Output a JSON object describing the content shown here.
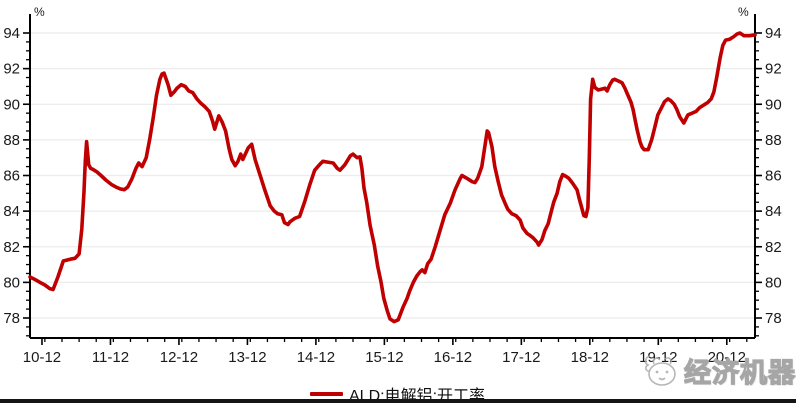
{
  "chart": {
    "unit_left": "%",
    "unit_right": "%",
    "legend": {
      "label": "ALD:电解铝:开工率",
      "color": "#c00000"
    },
    "watermark": "经济机器",
    "colors": {
      "line": "#c00000",
      "grid": "#ececec",
      "axis": "#000000",
      "tick_text": "#1a1a1a",
      "watermark": "#a6a6a6"
    }
  },
  "chart_data": {
    "type": "line",
    "title": "",
    "xlabel": "",
    "ylabel": "%",
    "ylim": [
      78,
      94
    ],
    "y_tick_step": 2,
    "y_minor_step": 0.5,
    "grid": "horizontal",
    "legend_position": "bottom-center",
    "dual_y_axis": true,
    "x_domain": [
      2010.783,
      2021.37
    ],
    "x_ticks": [
      {
        "label": "10-12",
        "d": 2010.958
      },
      {
        "label": "11-12",
        "d": 2011.958
      },
      {
        "label": "12-12",
        "d": 2012.958
      },
      {
        "label": "13-12",
        "d": 2013.958
      },
      {
        "label": "14-12",
        "d": 2014.958
      },
      {
        "label": "15-12",
        "d": 2015.958
      },
      {
        "label": "16-12",
        "d": 2016.958
      },
      {
        "label": "17-12",
        "d": 2017.958
      },
      {
        "label": "18-12",
        "d": 2018.958
      },
      {
        "label": "19-12",
        "d": 2019.958
      },
      {
        "label": "20-12",
        "d": 2020.958
      }
    ],
    "y_ticks": [
      78,
      80,
      82,
      84,
      86,
      88,
      90,
      92,
      94
    ],
    "series": [
      {
        "name": "ALD:电解铝:开工率",
        "color": "#c00000",
        "points": [
          [
            2010.783,
            80.3
          ],
          [
            2010.86,
            80.15
          ],
          [
            2010.93,
            80.0
          ],
          [
            2011.0,
            79.85
          ],
          [
            2011.07,
            79.65
          ],
          [
            2011.12,
            79.6
          ],
          [
            2011.19,
            80.3
          ],
          [
            2011.27,
            81.2
          ],
          [
            2011.37,
            81.3
          ],
          [
            2011.44,
            81.35
          ],
          [
            2011.5,
            81.6
          ],
          [
            2011.54,
            83.0
          ],
          [
            2011.57,
            85.0
          ],
          [
            2011.59,
            86.8
          ],
          [
            2011.61,
            87.9
          ],
          [
            2011.64,
            86.6
          ],
          [
            2011.67,
            86.4
          ],
          [
            2011.7,
            86.35
          ],
          [
            2011.76,
            86.2
          ],
          [
            2011.82,
            86.0
          ],
          [
            2011.89,
            85.75
          ],
          [
            2011.97,
            85.5
          ],
          [
            2012.04,
            85.35
          ],
          [
            2012.1,
            85.25
          ],
          [
            2012.16,
            85.2
          ],
          [
            2012.21,
            85.35
          ],
          [
            2012.27,
            85.8
          ],
          [
            2012.33,
            86.4
          ],
          [
            2012.37,
            86.7
          ],
          [
            2012.42,
            86.5
          ],
          [
            2012.48,
            87.0
          ],
          [
            2012.53,
            88.0
          ],
          [
            2012.58,
            89.2
          ],
          [
            2012.63,
            90.5
          ],
          [
            2012.68,
            91.4
          ],
          [
            2012.71,
            91.7
          ],
          [
            2012.74,
            91.75
          ],
          [
            2012.8,
            91.1
          ],
          [
            2012.84,
            90.5
          ],
          [
            2012.89,
            90.7
          ],
          [
            2012.93,
            90.9
          ],
          [
            2012.99,
            91.1
          ],
          [
            2013.05,
            91.0
          ],
          [
            2013.1,
            90.75
          ],
          [
            2013.16,
            90.65
          ],
          [
            2013.22,
            90.3
          ],
          [
            2013.28,
            90.05
          ],
          [
            2013.34,
            89.85
          ],
          [
            2013.4,
            89.6
          ],
          [
            2013.45,
            89.05
          ],
          [
            2013.48,
            88.6
          ],
          [
            2013.52,
            89.1
          ],
          [
            2013.54,
            89.35
          ],
          [
            2013.59,
            89.0
          ],
          [
            2013.64,
            88.5
          ],
          [
            2013.69,
            87.5
          ],
          [
            2013.73,
            86.9
          ],
          [
            2013.78,
            86.55
          ],
          [
            2013.82,
            86.8
          ],
          [
            2013.86,
            87.2
          ],
          [
            2013.89,
            86.9
          ],
          [
            2013.97,
            87.55
          ],
          [
            2014.02,
            87.75
          ],
          [
            2014.07,
            86.9
          ],
          [
            2014.14,
            86.05
          ],
          [
            2014.21,
            85.2
          ],
          [
            2014.29,
            84.3
          ],
          [
            2014.35,
            84.0
          ],
          [
            2014.4,
            83.85
          ],
          [
            2014.46,
            83.8
          ],
          [
            2014.5,
            83.35
          ],
          [
            2014.55,
            83.25
          ],
          [
            2014.58,
            83.4
          ],
          [
            2014.65,
            83.6
          ],
          [
            2014.72,
            83.7
          ],
          [
            2014.8,
            84.6
          ],
          [
            2014.87,
            85.5
          ],
          [
            2014.94,
            86.3
          ],
          [
            2015.02,
            86.65
          ],
          [
            2015.06,
            86.8
          ],
          [
            2015.13,
            86.75
          ],
          [
            2015.21,
            86.7
          ],
          [
            2015.27,
            86.4
          ],
          [
            2015.31,
            86.3
          ],
          [
            2015.38,
            86.6
          ],
          [
            2015.46,
            87.1
          ],
          [
            2015.5,
            87.2
          ],
          [
            2015.56,
            87.0
          ],
          [
            2015.6,
            87.05
          ],
          [
            2015.63,
            86.4
          ],
          [
            2015.66,
            85.3
          ],
          [
            2015.7,
            84.5
          ],
          [
            2015.75,
            83.2
          ],
          [
            2015.81,
            82.1
          ],
          [
            2015.86,
            80.9
          ],
          [
            2015.91,
            80.0
          ],
          [
            2015.95,
            79.1
          ],
          [
            2016.0,
            78.4
          ],
          [
            2016.04,
            77.95
          ],
          [
            2016.1,
            77.8
          ],
          [
            2016.16,
            77.9
          ],
          [
            2016.23,
            78.6
          ],
          [
            2016.29,
            79.1
          ],
          [
            2016.33,
            79.55
          ],
          [
            2016.38,
            80.0
          ],
          [
            2016.43,
            80.35
          ],
          [
            2016.48,
            80.6
          ],
          [
            2016.51,
            80.7
          ],
          [
            2016.55,
            80.55
          ],
          [
            2016.59,
            81.05
          ],
          [
            2016.64,
            81.3
          ],
          [
            2016.7,
            82.0
          ],
          [
            2016.77,
            82.9
          ],
          [
            2016.84,
            83.8
          ],
          [
            2016.92,
            84.45
          ],
          [
            2016.99,
            85.2
          ],
          [
            2017.06,
            85.8
          ],
          [
            2017.09,
            86.0
          ],
          [
            2017.16,
            85.85
          ],
          [
            2017.24,
            85.65
          ],
          [
            2017.28,
            85.6
          ],
          [
            2017.32,
            85.85
          ],
          [
            2017.38,
            86.5
          ],
          [
            2017.42,
            87.5
          ],
          [
            2017.46,
            88.5
          ],
          [
            2017.48,
            88.4
          ],
          [
            2017.53,
            87.6
          ],
          [
            2017.57,
            86.5
          ],
          [
            2017.62,
            85.65
          ],
          [
            2017.67,
            84.9
          ],
          [
            2017.72,
            84.45
          ],
          [
            2017.76,
            84.1
          ],
          [
            2017.82,
            83.85
          ],
          [
            2017.88,
            83.75
          ],
          [
            2017.94,
            83.5
          ],
          [
            2017.98,
            83.05
          ],
          [
            2018.04,
            82.75
          ],
          [
            2018.08,
            82.65
          ],
          [
            2018.13,
            82.5
          ],
          [
            2018.19,
            82.25
          ],
          [
            2018.21,
            82.1
          ],
          [
            2018.26,
            82.4
          ],
          [
            2018.3,
            82.9
          ],
          [
            2018.35,
            83.3
          ],
          [
            2018.39,
            83.9
          ],
          [
            2018.43,
            84.5
          ],
          [
            2018.48,
            85.0
          ],
          [
            2018.52,
            85.65
          ],
          [
            2018.56,
            86.05
          ],
          [
            2018.61,
            85.95
          ],
          [
            2018.65,
            85.85
          ],
          [
            2018.71,
            85.55
          ],
          [
            2018.77,
            85.2
          ],
          [
            2018.81,
            84.6
          ],
          [
            2018.84,
            84.2
          ],
          [
            2018.87,
            83.75
          ],
          [
            2018.9,
            83.7
          ],
          [
            2018.93,
            84.2
          ],
          [
            2018.95,
            87.0
          ],
          [
            2018.97,
            90.3
          ],
          [
            2019.0,
            91.4
          ],
          [
            2019.03,
            90.95
          ],
          [
            2019.08,
            90.8
          ],
          [
            2019.13,
            90.85
          ],
          [
            2019.18,
            90.9
          ],
          [
            2019.21,
            90.75
          ],
          [
            2019.25,
            91.1
          ],
          [
            2019.29,
            91.35
          ],
          [
            2019.32,
            91.4
          ],
          [
            2019.38,
            91.3
          ],
          [
            2019.43,
            91.2
          ],
          [
            2019.47,
            90.9
          ],
          [
            2019.51,
            90.55
          ],
          [
            2019.56,
            90.1
          ],
          [
            2019.59,
            89.7
          ],
          [
            2019.62,
            89.1
          ],
          [
            2019.65,
            88.55
          ],
          [
            2019.69,
            87.9
          ],
          [
            2019.72,
            87.6
          ],
          [
            2019.75,
            87.45
          ],
          [
            2019.81,
            87.45
          ],
          [
            2019.86,
            88.0
          ],
          [
            2019.91,
            88.75
          ],
          [
            2019.95,
            89.4
          ],
          [
            2020.01,
            89.85
          ],
          [
            2020.05,
            90.15
          ],
          [
            2020.1,
            90.3
          ],
          [
            2020.14,
            90.2
          ],
          [
            2020.19,
            90.0
          ],
          [
            2020.23,
            89.7
          ],
          [
            2020.27,
            89.3
          ],
          [
            2020.33,
            88.95
          ],
          [
            2020.39,
            89.4
          ],
          [
            2020.45,
            89.5
          ],
          [
            2020.51,
            89.6
          ],
          [
            2020.56,
            89.8
          ],
          [
            2020.62,
            89.95
          ],
          [
            2020.68,
            90.1
          ],
          [
            2020.73,
            90.3
          ],
          [
            2020.77,
            90.7
          ],
          [
            2020.81,
            91.5
          ],
          [
            2020.86,
            92.6
          ],
          [
            2020.9,
            93.3
          ],
          [
            2020.94,
            93.6
          ],
          [
            2021.0,
            93.65
          ],
          [
            2021.06,
            93.8
          ],
          [
            2021.11,
            93.95
          ],
          [
            2021.15,
            94.0
          ],
          [
            2021.21,
            93.85
          ],
          [
            2021.29,
            93.85
          ],
          [
            2021.37,
            93.9
          ]
        ]
      }
    ]
  }
}
